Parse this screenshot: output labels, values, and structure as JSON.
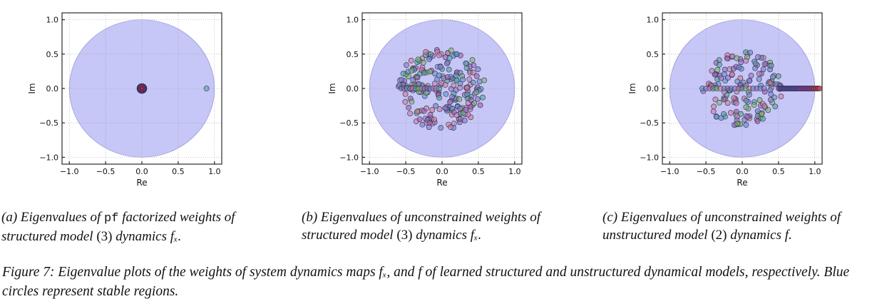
{
  "panels": [
    {
      "id": "a",
      "chart_data": {
        "type": "scatter",
        "xlabel": "Re",
        "ylabel": "Im",
        "xlim": [
          -1.1,
          1.1
        ],
        "ylim": [
          -1.1,
          1.1
        ],
        "xticks": [
          "−1.0",
          "−0.5",
          "0.0",
          "0.5",
          "1.0"
        ],
        "yticks": [
          "1.0",
          "0.5",
          "0.0",
          "−0.5",
          "−1.0"
        ],
        "grid": true,
        "unit_circle": true,
        "distribution": "cluster-origin",
        "points": [
          [
            0.89,
            0.0
          ]
        ]
      },
      "caption": {
        "pre": "(a) Eigenvalues of ",
        "code": "pf",
        "mid": " factorized weights of structured model ",
        "ref": "(3)",
        "post": " dynamics ",
        "math": "fₓ."
      }
    },
    {
      "id": "b",
      "chart_data": {
        "type": "scatter",
        "xlabel": "Re",
        "ylabel": "Im",
        "xlim": [
          -1.1,
          1.1
        ],
        "ylim": [
          -1.1,
          1.1
        ],
        "xticks": [
          "−1.0",
          "−0.5",
          "0.0",
          "0.5",
          "1.0"
        ],
        "yticks": [
          "1.0",
          "0.5",
          "0.0",
          "−0.5",
          "−1.0"
        ],
        "grid": true,
        "unit_circle": true,
        "distribution": "uniform-disk-0.6"
      },
      "caption": {
        "pre": "(b) Eigenvalues of unconstrained weights of structured model ",
        "ref": "(3)",
        "post": " dynamics ",
        "math": "fₓ."
      }
    },
    {
      "id": "c",
      "chart_data": {
        "type": "scatter",
        "xlabel": "Re",
        "ylabel": "Im",
        "xlim": [
          -1.1,
          1.1
        ],
        "ylim": [
          -1.1,
          1.1
        ],
        "xticks": [
          "−1.0",
          "−0.5",
          "0.0",
          "0.5",
          "1.0"
        ],
        "yticks": [
          "1.0",
          "0.5",
          "0.0",
          "−0.5",
          "−1.0"
        ],
        "grid": true,
        "unit_circle": true,
        "distribution": "disk-0.55-plus-real-axis-to-1.08"
      },
      "caption": {
        "pre": "(c) Eigenvalues of unconstrained weights of unstructured model ",
        "ref": "(2)",
        "post": " dynamics ",
        "math": "f."
      }
    }
  ],
  "figure_caption": "Figure 7: Eigenvalue plots of the weights of system dynamics maps fₓ, and f of learned structured and unstructured dynamical models, respectively. Blue circles represent stable regions.",
  "colors": {
    "stable_region": "#c6c6f7",
    "point_palette": [
      "#5b8fd6",
      "#8f6fd0",
      "#c87ab8",
      "#4fa1a8",
      "#7ab86a",
      "#d27a9c",
      "#6a7fd8",
      "#a05ab8"
    ],
    "cluster_point": "#b02050"
  }
}
